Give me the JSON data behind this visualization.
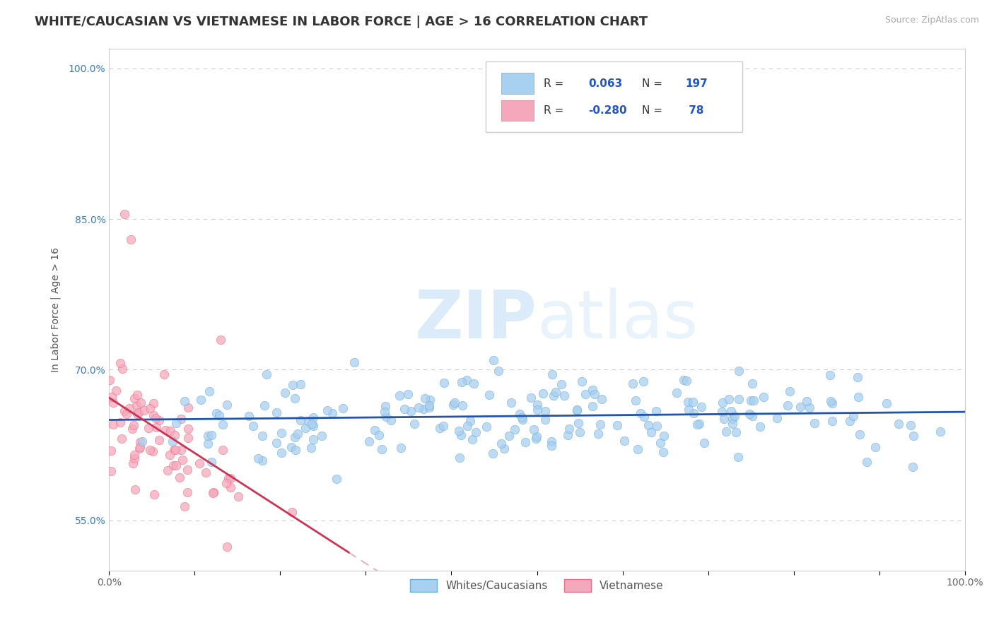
{
  "title": "WHITE/CAUCASIAN VS VIETNAMESE IN LABOR FORCE | AGE > 16 CORRELATION CHART",
  "source": "Source: ZipAtlas.com",
  "xlabel": "",
  "ylabel": "In Labor Force | Age > 16",
  "watermark": "ZIPatlas",
  "blue_R": 0.063,
  "blue_N": 197,
  "pink_R": -0.28,
  "pink_N": 78,
  "blue_color": "#6baed6",
  "pink_color": "#e8708a",
  "blue_scatter_color": "#a8d0f0",
  "pink_scatter_color": "#f5a8bb",
  "blue_line_color": "#2255aa",
  "pink_line_color": "#cc3355",
  "pink_line_dashed_color": "#f0b0c0",
  "legend_blue_label": "Whites/Caucasians",
  "legend_pink_label": "Vietnamese",
  "xmin": 0.0,
  "xmax": 1.0,
  "ymin": 0.5,
  "ymax": 1.02,
  "ytick_vals": [
    0.55,
    0.7,
    0.85,
    1.0
  ],
  "ytick_labels": [
    "55.0%",
    "70.0%",
    "85.0%",
    "100.0%"
  ],
  "xtick_labels": [
    "0.0%",
    "",
    "",
    "",
    "",
    "",
    "",
    "",
    "",
    "",
    "100.0%"
  ],
  "title_fontsize": 13,
  "axis_fontsize": 10,
  "label_fontsize": 10,
  "source_fontsize": 9
}
